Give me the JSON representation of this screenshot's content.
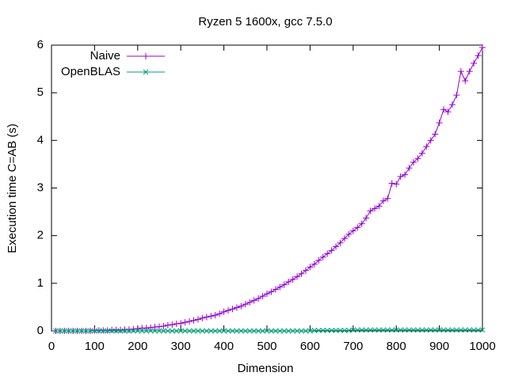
{
  "chart_data": {
    "type": "line",
    "title": "Ryzen 5 1600x, gcc 7.5.0",
    "x_label": "Dimension",
    "y_label": "Execution time C=AB (s)",
    "x": [
      10,
      20,
      30,
      40,
      50,
      60,
      70,
      80,
      90,
      100,
      110,
      120,
      130,
      140,
      150,
      160,
      170,
      180,
      190,
      200,
      210,
      220,
      230,
      240,
      250,
      260,
      270,
      280,
      290,
      300,
      310,
      320,
      330,
      340,
      350,
      360,
      370,
      380,
      390,
      400,
      410,
      420,
      430,
      440,
      450,
      460,
      470,
      480,
      490,
      500,
      510,
      520,
      530,
      540,
      550,
      560,
      570,
      580,
      590,
      600,
      610,
      620,
      630,
      640,
      650,
      660,
      670,
      680,
      690,
      700,
      710,
      720,
      730,
      740,
      750,
      760,
      770,
      780,
      790,
      800,
      810,
      820,
      830,
      840,
      850,
      860,
      870,
      880,
      890,
      900,
      910,
      920,
      930,
      940,
      950,
      960,
      970,
      980,
      990,
      1000
    ],
    "series": [
      {
        "name": "Naive",
        "color": "#9400d3",
        "marker": "+",
        "values": [
          0,
          0,
          0,
          0,
          0,
          0,
          0,
          0,
          0,
          0.01,
          0.01,
          0.01,
          0.01,
          0.02,
          0.02,
          0.02,
          0.03,
          0.03,
          0.04,
          0.05,
          0.06,
          0.06,
          0.07,
          0.08,
          0.09,
          0.1,
          0.12,
          0.13,
          0.15,
          0.16,
          0.18,
          0.2,
          0.22,
          0.24,
          0.27,
          0.29,
          0.31,
          0.33,
          0.36,
          0.4,
          0.43,
          0.46,
          0.49,
          0.52,
          0.56,
          0.6,
          0.64,
          0.68,
          0.73,
          0.78,
          0.82,
          0.87,
          0.92,
          0.97,
          1.03,
          1.08,
          1.14,
          1.2,
          1.27,
          1.34,
          1.4,
          1.48,
          1.55,
          1.62,
          1.69,
          1.77,
          1.85,
          1.94,
          2.03,
          2.1,
          2.17,
          2.25,
          2.37,
          2.52,
          2.57,
          2.62,
          2.73,
          2.78,
          3.1,
          3.08,
          3.24,
          3.28,
          3.42,
          3.54,
          3.62,
          3.73,
          3.87,
          4.0,
          4.13,
          4.37,
          4.65,
          4.6,
          4.75,
          4.95,
          5.45,
          5.25,
          5.45,
          5.62,
          5.78,
          5.95
        ]
      },
      {
        "name": "OpenBLAS",
        "color": "#009e73",
        "marker": "x",
        "values": [
          0,
          0,
          0,
          0,
          0,
          0,
          0,
          0,
          0,
          0,
          0,
          0,
          0,
          0,
          0,
          0,
          0,
          0,
          0,
          0,
          0,
          0,
          0,
          0,
          0,
          0,
          0,
          0,
          0,
          0,
          0,
          0,
          0,
          0,
          0,
          0,
          0,
          0,
          0,
          0,
          0,
          0,
          0,
          0,
          0,
          0,
          0,
          0,
          0,
          0,
          0,
          0,
          0,
          0,
          0,
          0,
          0,
          0,
          0,
          0,
          0.01,
          0.01,
          0.01,
          0.01,
          0.01,
          0.01,
          0.01,
          0.01,
          0.01,
          0.02,
          0.02,
          0.02,
          0.02,
          0.02,
          0.02,
          0.02,
          0.02,
          0.02,
          0.02,
          0.02,
          0.02,
          0.02,
          0.02,
          0.02,
          0.02,
          0.02,
          0.02,
          0.02,
          0.02,
          0.02,
          0.02,
          0.02,
          0.02,
          0.02,
          0.02,
          0.02,
          0.02,
          0.02,
          0.02,
          0.02
        ]
      }
    ],
    "xlim": [
      0,
      1000
    ],
    "xticks": [
      0,
      100,
      200,
      300,
      400,
      500,
      600,
      700,
      800,
      900,
      1000
    ],
    "ylim": [
      0,
      6
    ],
    "yticks": [
      0,
      1,
      2,
      3,
      4,
      5,
      6
    ],
    "legend": "top-left"
  }
}
